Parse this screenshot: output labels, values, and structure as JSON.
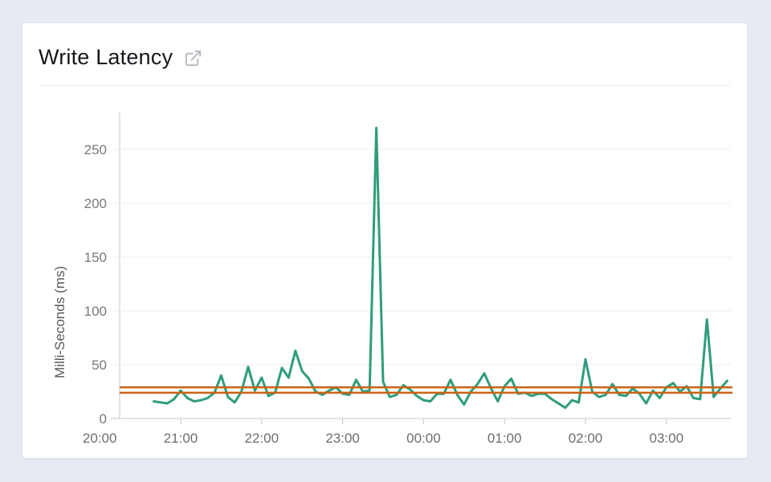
{
  "page": {
    "background_color": "#e7eaf3"
  },
  "card": {
    "background_color": "#ffffff"
  },
  "header": {
    "title": "Write Latency",
    "icon": "external-link-icon"
  },
  "chart_data": {
    "type": "line",
    "title": "Write Latency",
    "xlabel": "",
    "ylabel": "Milli-Seconds (ms)",
    "y_ticks": [
      0,
      50,
      100,
      150,
      200,
      250
    ],
    "x_tick_labels": [
      "20:00",
      "21:00",
      "22:00",
      "23:00",
      "00:00",
      "01:00",
      "02:00",
      "03:00"
    ],
    "ylim": [
      0,
      285
    ],
    "grid": "horizontal",
    "legend": "none",
    "axis_color": "#c6c8ca",
    "gridline_color": "#ededed",
    "series": [
      {
        "name": "Write Latency",
        "color": "#2f9c7d",
        "unit": "ms",
        "start_time": "20:40",
        "interval_minutes": 5,
        "end_time": "03:45",
        "values": [
          16,
          15,
          14,
          18,
          26,
          19,
          16,
          17,
          19,
          24,
          40,
          20,
          15,
          25,
          48,
          26,
          38,
          21,
          24,
          47,
          38,
          63,
          44,
          37,
          25,
          22,
          26,
          29,
          23,
          22,
          36,
          25,
          26,
          270,
          34,
          20,
          22,
          31,
          27,
          21,
          17,
          16,
          23,
          23,
          36,
          22,
          13,
          25,
          32,
          42,
          28,
          16,
          30,
          37,
          23,
          24,
          21,
          23,
          23,
          18,
          14,
          10,
          17,
          15,
          55,
          25,
          20,
          22,
          32,
          22,
          21,
          28,
          23,
          14,
          26,
          19,
          29,
          33,
          25,
          30,
          19,
          18,
          92,
          20,
          28,
          35
        ]
      }
    ],
    "thresholds": [
      {
        "value": 29,
        "color": "#c9621a"
      },
      {
        "value": 24,
        "color": "#c9621a"
      }
    ]
  }
}
